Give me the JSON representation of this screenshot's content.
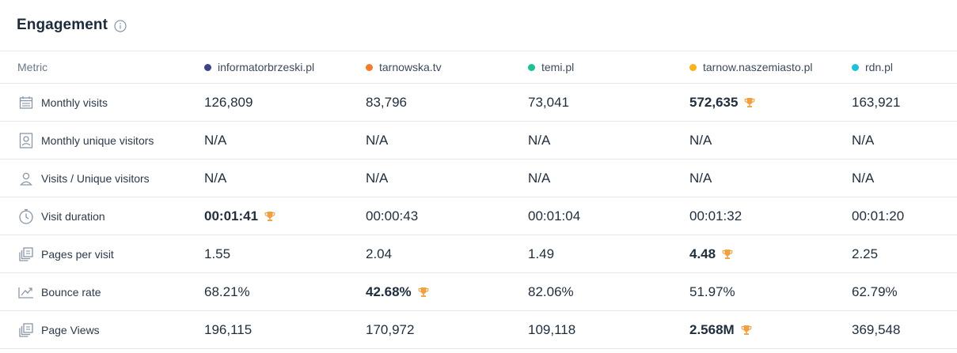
{
  "header": {
    "title": "Engagement",
    "info_icon": "info-icon"
  },
  "colors": {
    "informatorbrzeski": "#3b4487",
    "tarnowska": "#f27c2b",
    "temi": "#1fc091",
    "tarnow": "#f6b51a",
    "rdn": "#1ec0d8",
    "trophy": "#f0a040"
  },
  "columns": {
    "metric_label": "Metric",
    "sites": [
      "informatorbrzeski.pl",
      "tarnowska.tv",
      "temi.pl",
      "tarnow.naszemiasto.pl",
      "rdn.pl"
    ]
  },
  "rows": [
    {
      "name": "Monthly visits",
      "icon": "calendar-icon",
      "values": [
        "126,809",
        "83,796",
        "73,041",
        "572,635",
        "163,921"
      ],
      "winner": 3
    },
    {
      "name": "Monthly unique visitors",
      "icon": "contact-card-icon",
      "values": [
        "N/A",
        "N/A",
        "N/A",
        "N/A",
        "N/A"
      ],
      "winner": null
    },
    {
      "name": "Visits / Unique visitors",
      "icon": "person-icon",
      "values": [
        "N/A",
        "N/A",
        "N/A",
        "N/A",
        "N/A"
      ],
      "winner": null
    },
    {
      "name": "Visit duration",
      "icon": "stopwatch-icon",
      "values": [
        "00:01:41",
        "00:00:43",
        "00:01:04",
        "00:01:32",
        "00:01:20"
      ],
      "winner": 0
    },
    {
      "name": "Pages per visit",
      "icon": "pages-icon",
      "values": [
        "1.55",
        "2.04",
        "1.49",
        "4.48",
        "2.25"
      ],
      "winner": 3
    },
    {
      "name": "Bounce rate",
      "icon": "bounce-arrow-icon",
      "values": [
        "68.21%",
        "42.68%",
        "82.06%",
        "51.97%",
        "62.79%"
      ],
      "winner": 1
    },
    {
      "name": "Page Views",
      "icon": "pages-icon",
      "values": [
        "196,115",
        "170,972",
        "109,118",
        "2.568M",
        "369,548"
      ],
      "winner": 3
    }
  ]
}
